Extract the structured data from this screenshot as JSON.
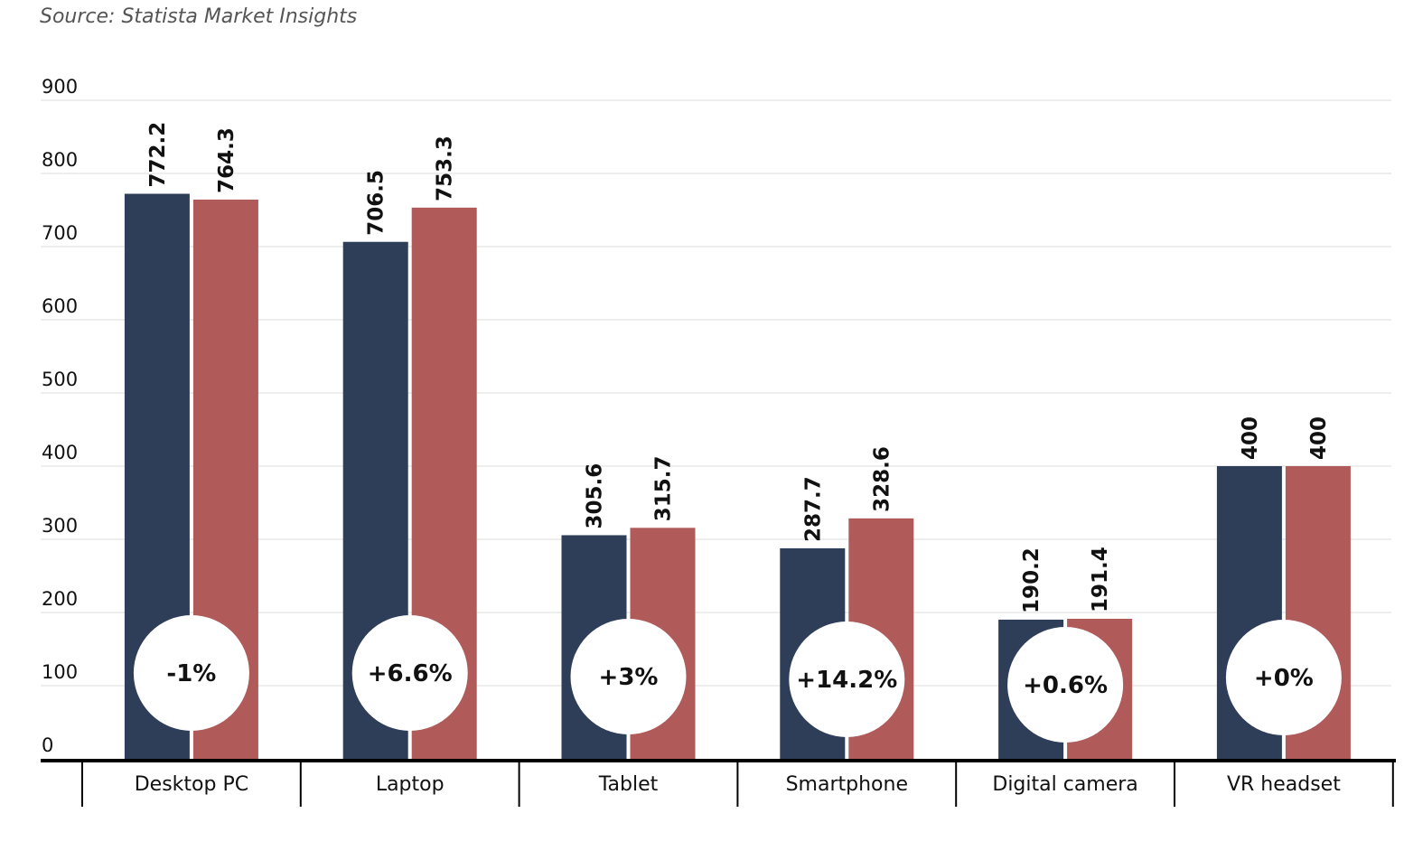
{
  "source": "Source: Statista Market Insights",
  "chart_data": {
    "type": "bar",
    "categories": [
      "Desktop PC",
      "Laptop",
      "Tablet",
      "Smartphone",
      "Digital camera",
      "VR headset"
    ],
    "series": [
      {
        "values": [
          772.2,
          706.5,
          305.6,
          287.7,
          190.2,
          400
        ],
        "color": "#2e3d58"
      },
      {
        "values": [
          764.3,
          753.3,
          315.7,
          328.6,
          191.4,
          400
        ],
        "color": "#b05a5a"
      }
    ],
    "value_labels": [
      [
        "772.2",
        "764.3"
      ],
      [
        "706.5",
        "753.3"
      ],
      [
        "305.6",
        "315.7"
      ],
      [
        "287.7",
        "328.6"
      ],
      [
        "190.2",
        "191.4"
      ],
      [
        "400",
        "400"
      ]
    ],
    "change_labels": [
      "-1%",
      "+6.6%",
      "+3%",
      "+14.2%",
      "+0.6%",
      "+0%"
    ],
    "yticks": [
      0,
      100,
      200,
      300,
      400,
      500,
      600,
      700,
      800,
      900
    ],
    "ylim": [
      0,
      900
    ],
    "grid": true,
    "title": "",
    "xlabel": "",
    "ylabel": ""
  }
}
